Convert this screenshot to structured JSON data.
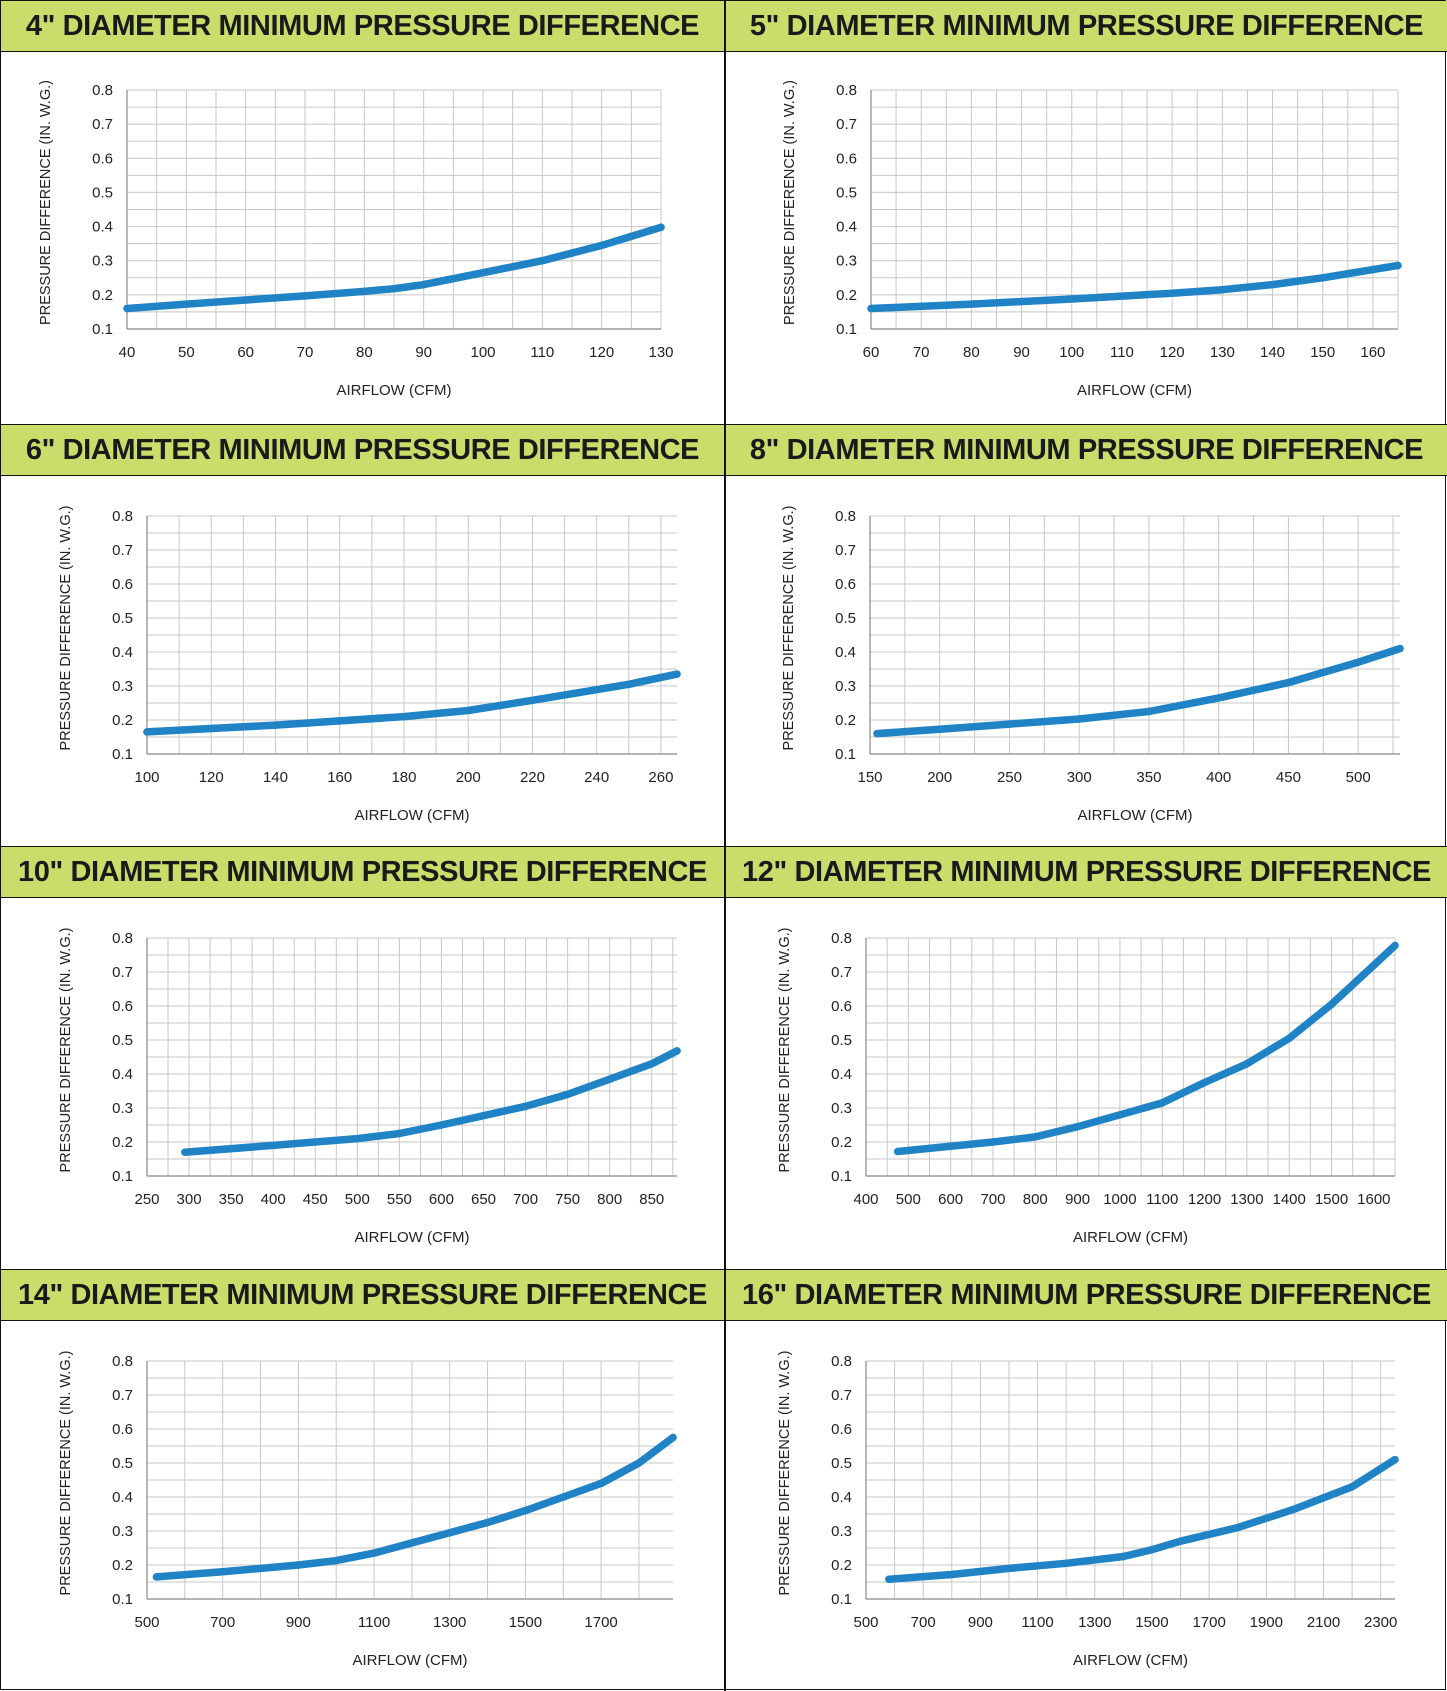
{
  "style": {
    "banner_color": "#c8dd6a",
    "line_color": "#1f83c5",
    "grid_color": "#c7c7c7",
    "axis_color": "#888888"
  },
  "chart_data": [
    {
      "type": "line",
      "title": "4\" DIAMETER MINIMUM PRESSURE DIFFERENCE",
      "xlabel": "AIRFLOW (CFM)",
      "ylabel": "PRESSURE DIFFERENCE (IN. W.G.)",
      "xlim": [
        40,
        130
      ],
      "ylim": [
        0.1,
        0.8
      ],
      "xticks": [
        40,
        50,
        60,
        70,
        80,
        90,
        100,
        110,
        120,
        130
      ],
      "yticks": [
        0.1,
        0.2,
        0.3,
        0.4,
        0.5,
        0.6,
        0.7,
        0.8
      ],
      "grid": true,
      "series": [
        {
          "x": [
            40,
            50,
            60,
            70,
            80,
            85,
            90,
            100,
            110,
            120,
            130
          ],
          "y": [
            0.16,
            0.173,
            0.185,
            0.197,
            0.21,
            0.218,
            0.23,
            0.265,
            0.3,
            0.345,
            0.398
          ]
        }
      ]
    },
    {
      "type": "line",
      "title": "5\" DIAMETER MINIMUM PRESSURE DIFFERENCE",
      "xlabel": "AIRFLOW (CFM)",
      "ylabel": "PRESSURE DIFFERENCE (IN. W.G.)",
      "xlim": [
        60,
        165
      ],
      "ylim": [
        0.1,
        0.8
      ],
      "xticks": [
        60,
        70,
        80,
        90,
        100,
        110,
        120,
        130,
        140,
        150,
        160
      ],
      "yticks": [
        0.1,
        0.2,
        0.3,
        0.4,
        0.5,
        0.6,
        0.7,
        0.8
      ],
      "grid": true,
      "series": [
        {
          "x": [
            60,
            80,
            100,
            120,
            130,
            140,
            150,
            165
          ],
          "y": [
            0.16,
            0.173,
            0.188,
            0.205,
            0.215,
            0.23,
            0.25,
            0.286
          ]
        }
      ]
    },
    {
      "type": "line",
      "title": "6\" DIAMETER MINIMUM PRESSURE DIFFERENCE",
      "xlabel": "AIRFLOW (CFM)",
      "ylabel": "PRESSURE DIFFERENCE (IN. W.G.)",
      "xlim": [
        100,
        265
      ],
      "ylim": [
        0.1,
        0.8
      ],
      "xticks": [
        100,
        120,
        140,
        160,
        180,
        200,
        220,
        240,
        260
      ],
      "yticks": [
        0.1,
        0.2,
        0.3,
        0.4,
        0.5,
        0.6,
        0.7,
        0.8
      ],
      "grid": true,
      "series": [
        {
          "x": [
            100,
            140,
            180,
            200,
            220,
            250,
            265
          ],
          "y": [
            0.165,
            0.185,
            0.21,
            0.228,
            0.258,
            0.305,
            0.335
          ]
        }
      ]
    },
    {
      "type": "line",
      "title": "8\" DIAMETER MINIMUM PRESSURE DIFFERENCE",
      "xlabel": "AIRFLOW (CFM)",
      "ylabel": "PRESSURE DIFFERENCE (IN. W.G.)",
      "xlim": [
        150,
        530
      ],
      "ylim": [
        0.1,
        0.8
      ],
      "xticks": [
        150,
        200,
        250,
        300,
        350,
        400,
        450,
        500
      ],
      "yticks": [
        0.1,
        0.2,
        0.3,
        0.4,
        0.5,
        0.6,
        0.7,
        0.8
      ],
      "grid": true,
      "series": [
        {
          "x": [
            155,
            200,
            250,
            300,
            350,
            400,
            450,
            500,
            530
          ],
          "y": [
            0.16,
            0.173,
            0.188,
            0.203,
            0.225,
            0.265,
            0.31,
            0.37,
            0.41
          ]
        }
      ]
    },
    {
      "type": "line",
      "title": "10\" DIAMETER MINIMUM PRESSURE DIFFERENCE",
      "xlabel": "AIRFLOW (CFM)",
      "ylabel": "PRESSURE DIFFERENCE (IN. W.G.)",
      "xlim": [
        250,
        880
      ],
      "ylim": [
        0.1,
        0.8
      ],
      "xticks": [
        250,
        300,
        350,
        400,
        450,
        500,
        550,
        600,
        650,
        700,
        750,
        800,
        850
      ],
      "yticks": [
        0.1,
        0.2,
        0.3,
        0.4,
        0.5,
        0.6,
        0.7,
        0.8
      ],
      "grid": true,
      "series": [
        {
          "x": [
            295,
            400,
            500,
            550,
            600,
            700,
            750,
            800,
            850,
            880
          ],
          "y": [
            0.17,
            0.19,
            0.21,
            0.225,
            0.25,
            0.305,
            0.34,
            0.385,
            0.43,
            0.468
          ]
        }
      ]
    },
    {
      "type": "line",
      "title": "12\" DIAMETER MINIMUM PRESSURE DIFFERENCE",
      "xlabel": "AIRFLOW (CFM)",
      "ylabel": "PRESSURE DIFFERENCE (IN. W.G.)",
      "xlim": [
        400,
        1650
      ],
      "ylim": [
        0.1,
        0.8
      ],
      "xticks": [
        400,
        500,
        600,
        700,
        800,
        900,
        1000,
        1100,
        1200,
        1300,
        1400,
        1500,
        1600
      ],
      "yticks": [
        0.1,
        0.2,
        0.3,
        0.4,
        0.5,
        0.6,
        0.7,
        0.8
      ],
      "grid": true,
      "series": [
        {
          "x": [
            475,
            700,
            800,
            900,
            1000,
            1100,
            1200,
            1300,
            1400,
            1500,
            1600,
            1650
          ],
          "y": [
            0.172,
            0.2,
            0.215,
            0.245,
            0.28,
            0.315,
            0.375,
            0.43,
            0.505,
            0.605,
            0.72,
            0.778
          ]
        }
      ]
    },
    {
      "type": "line",
      "title": "14\" DIAMETER MINIMUM PRESSURE DIFFERENCE",
      "xlabel": "AIRFLOW (CFM)",
      "ylabel": "PRESSURE DIFFERENCE (IN. W.G.)",
      "xlim": [
        500,
        1890
      ],
      "ylim": [
        0.1,
        0.8
      ],
      "xticks": [
        500,
        700,
        900,
        1100,
        1300,
        1500,
        1700
      ],
      "yticks": [
        0.1,
        0.2,
        0.3,
        0.4,
        0.5,
        0.6,
        0.7,
        0.8
      ],
      "grid": true,
      "series": [
        {
          "x": [
            525,
            700,
            900,
            1000,
            1100,
            1200,
            1300,
            1400,
            1500,
            1600,
            1700,
            1800,
            1890
          ],
          "y": [
            0.165,
            0.18,
            0.2,
            0.213,
            0.235,
            0.265,
            0.295,
            0.325,
            0.36,
            0.4,
            0.44,
            0.5,
            0.575
          ]
        }
      ]
    },
    {
      "type": "line",
      "title": "16\" DIAMETER MINIMUM PRESSURE DIFFERENCE",
      "xlabel": "AIRFLOW (CFM)",
      "ylabel": "PRESSURE DIFFERENCE (IN. W.G.)",
      "xlim": [
        500,
        2350
      ],
      "ylim": [
        0.1,
        0.8
      ],
      "xticks": [
        500,
        700,
        900,
        1100,
        1300,
        1500,
        1700,
        1900,
        2100,
        2300
      ],
      "yticks": [
        0.1,
        0.2,
        0.3,
        0.4,
        0.5,
        0.6,
        0.7,
        0.8
      ],
      "grid": true,
      "series": [
        {
          "x": [
            580,
            800,
            1000,
            1200,
            1400,
            1500,
            1600,
            1800,
            2000,
            2200,
            2350
          ],
          "y": [
            0.158,
            0.172,
            0.19,
            0.205,
            0.225,
            0.245,
            0.27,
            0.31,
            0.365,
            0.43,
            0.51
          ]
        }
      ]
    }
  ]
}
